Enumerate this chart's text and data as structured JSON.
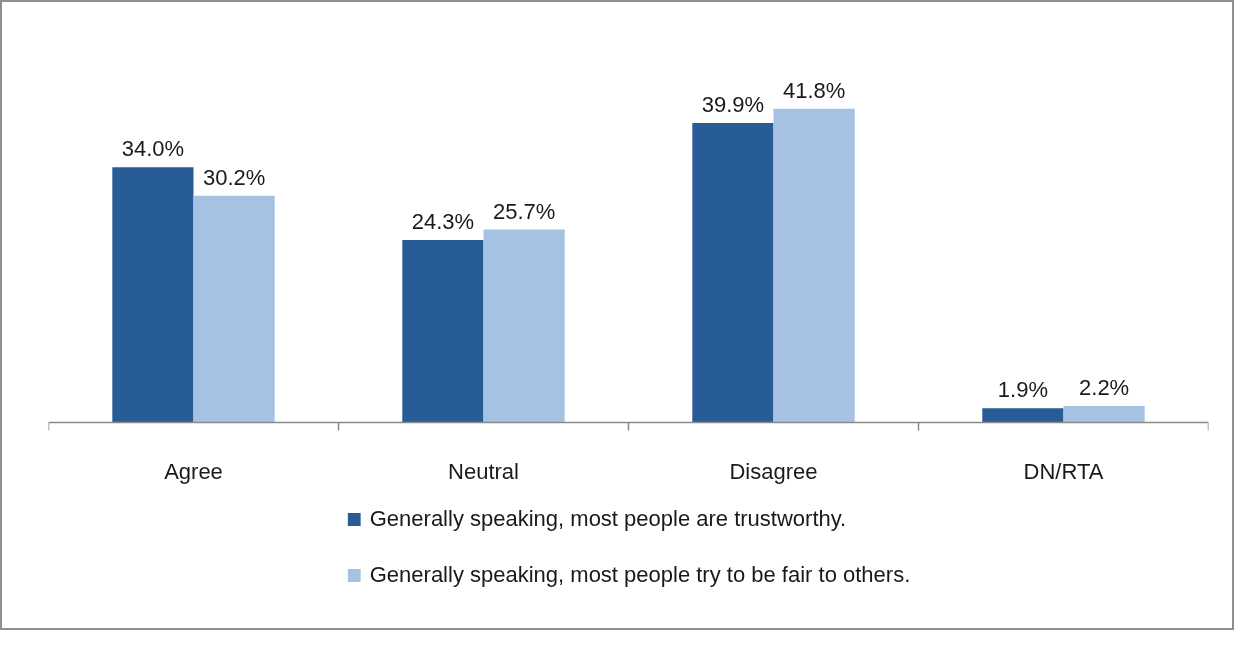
{
  "chart_data": {
    "type": "bar",
    "categories": [
      "Agree",
      "Neutral",
      "Disagree",
      "DN/RTA"
    ],
    "series": [
      {
        "name": "Generally speaking, most people are trustworthy.",
        "color": "#285c96",
        "values": [
          34.0,
          24.3,
          39.9,
          1.9
        ],
        "value_labels": [
          "34.0%",
          "24.3%",
          "39.9%",
          "1.9%"
        ]
      },
      {
        "name": "Generally speaking, most people try to be fair to others.",
        "color": "#a6c2e3",
        "values": [
          30.2,
          25.7,
          41.8,
          2.2
        ],
        "value_labels": [
          "30.2%",
          "25.7%",
          "41.8%",
          "2.2%"
        ]
      }
    ],
    "legend": "bottom",
    "tick_labels": "x"
  }
}
